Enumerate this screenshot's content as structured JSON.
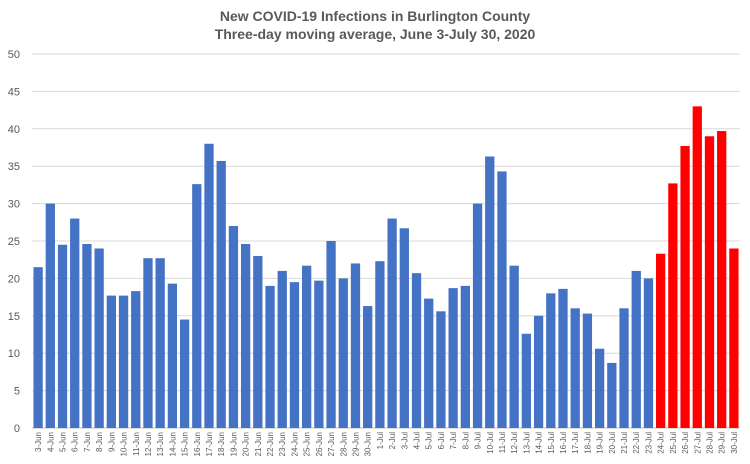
{
  "chart_data": {
    "type": "bar",
    "title": "New COVID-19 Infections in Burlington County",
    "subtitle": "Three-day moving average, June 3-July 30, 2020",
    "xlabel": "",
    "ylabel": "",
    "ylim": [
      0,
      50
    ],
    "yticks": [
      0,
      5,
      10,
      15,
      20,
      25,
      30,
      35,
      40,
      45,
      50
    ],
    "grid": true,
    "legend": "none",
    "colors": {
      "default": "#4472C4",
      "highlight": "#FF0000",
      "grid": "#D9D9D9",
      "axis_text": "#595959"
    },
    "categories": [
      "3-Jun",
      "4-Jun",
      "5-Jun",
      "6-Jun",
      "7-Jun",
      "8-Jun",
      "9-Jun",
      "10-Jun",
      "11-Jun",
      "12-Jun",
      "13-Jun",
      "14-Jun",
      "15-Jun",
      "16-Jun",
      "17-Jun",
      "18-Jun",
      "19-Jun",
      "20-Jun",
      "21-Jun",
      "22-Jun",
      "23-Jun",
      "24-Jun",
      "25-Jun",
      "26-Jun",
      "27-Jun",
      "28-Jun",
      "29-Jun",
      "30-Jun",
      "1-Jul",
      "2-Jul",
      "3-Jul",
      "4-Jul",
      "5-Jul",
      "6-Jul",
      "7-Jul",
      "8-Jul",
      "9-Jul",
      "10-Jul",
      "11-Jul",
      "12-Jul",
      "13-Jul",
      "14-Jul",
      "15-Jul",
      "16-Jul",
      "17-Jul",
      "18-Jul",
      "19-Jul",
      "20-Jul",
      "21-Jul",
      "22-Jul",
      "23-Jul",
      "24-Jul",
      "25-Jul",
      "26-Jul",
      "27-Jul",
      "28-Jul",
      "29-Jul",
      "30-Jul"
    ],
    "values": [
      21.5,
      30,
      24.5,
      28,
      24.6,
      24,
      17.7,
      17.7,
      18.3,
      22.7,
      22.7,
      19.3,
      14.5,
      32.6,
      38,
      35.7,
      27,
      24.6,
      23,
      19,
      21,
      19.5,
      21.7,
      19.7,
      25,
      20,
      22,
      16.3,
      22.3,
      28,
      26.7,
      20.7,
      17.3,
      15.6,
      18.7,
      19,
      30,
      36.3,
      34.3,
      21.7,
      12.6,
      15,
      18,
      18.6,
      16,
      15.3,
      10.6,
      8.7,
      16,
      21,
      20,
      23.3,
      32.7,
      37.7,
      43,
      39,
      39.7,
      24
    ],
    "highlight_from_index": 51
  }
}
